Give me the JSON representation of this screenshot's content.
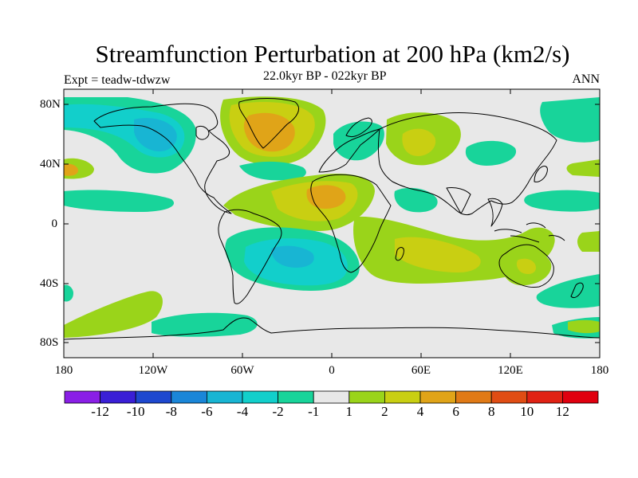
{
  "title": "Streamfunction Perturbation at 200 hPa (km2/s)",
  "left_subtitle": "Expt = teadw-tdwzw",
  "center_subtitle": "22.0kyr BP - 022kyr BP",
  "right_subtitle": "ANN",
  "lat_ticks": [
    "80N",
    "40N",
    "0",
    "40S",
    "80S"
  ],
  "lon_ticks": [
    "180",
    "120W",
    "60W",
    "0",
    "60E",
    "120E",
    "180"
  ],
  "colorbar": {
    "labels": [
      "-12",
      "-10",
      "-8",
      "-6",
      "-4",
      "-2",
      "-1",
      "1",
      "2",
      "4",
      "6",
      "8",
      "10",
      "12"
    ],
    "colors": [
      "#8a1fe6",
      "#3a1fd6",
      "#1e48cf",
      "#1a86d8",
      "#18b5d3",
      "#12cfcb",
      "#18d49a",
      "#e8e8e8",
      "#9ad41a",
      "#c9cf12",
      "#e0a418",
      "#e07a16",
      "#e04d14",
      "#e02214",
      "#e0000f"
    ]
  },
  "map": {
    "colors": {
      "background": "#e8e8e8",
      "green_teal": "#18d49a",
      "cyan": "#12cfcb",
      "cyan_deep": "#18b5d3",
      "yellow_green": "#9ad41a",
      "yellow": "#c9cf12",
      "orange": "#e0a418",
      "coastline": "#000000"
    }
  }
}
